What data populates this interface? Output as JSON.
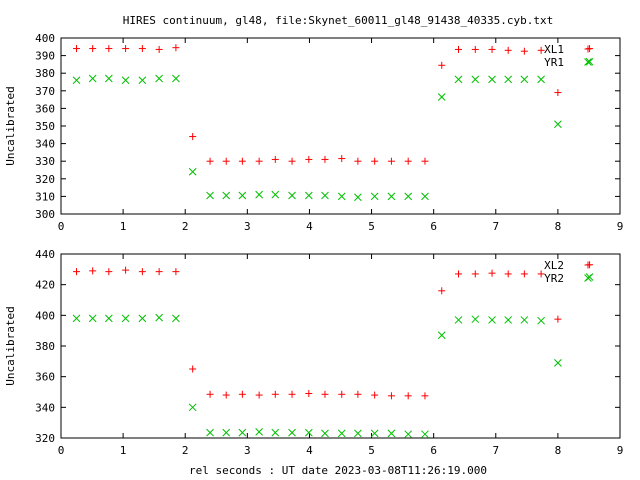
{
  "chart_data": {
    "title": "HIRES continuum, gl48, file:Skynet_60011_gl48_91438_40335.cyb.txt",
    "xlabel": "rel seconds : UT date 2023-03-08T11:26:19.000",
    "panels": [
      {
        "type": "scatter",
        "ylabel": "Uncalibrated",
        "xlim": [
          0,
          9
        ],
        "ylim": [
          300,
          400
        ],
        "xticks": [
          0,
          1,
          2,
          3,
          4,
          5,
          6,
          7,
          8,
          9
        ],
        "yticks": [
          300,
          310,
          320,
          330,
          340,
          350,
          360,
          370,
          380,
          390,
          400
        ],
        "legend_position": "top-right",
        "series": [
          {
            "name": "XL1",
            "marker": "plus",
            "color": "#ff0000",
            "x": [
              0.25,
              0.51,
              0.77,
              1.04,
              1.31,
              1.58,
              1.85,
              2.12,
              2.4,
              2.66,
              2.92,
              3.19,
              3.45,
              3.72,
              3.99,
              4.25,
              4.52,
              4.78,
              5.05,
              5.32,
              5.59,
              5.86,
              6.13,
              6.4,
              6.67,
              6.94,
              7.2,
              7.46,
              7.73,
              8.0,
              8.51
            ],
            "y": [
              394,
              394,
              394,
              394,
              394,
              393.5,
              394.5,
              344,
              330,
              330,
              330,
              330,
              331,
              330,
              331,
              331,
              331.5,
              330,
              330,
              330,
              330,
              330,
              384.5,
              393.5,
              393.5,
              393.5,
              393,
              392.5,
              393,
              369,
              394
            ]
          },
          {
            "name": "YR1",
            "marker": "x",
            "color": "#00c000",
            "x": [
              0.25,
              0.51,
              0.77,
              1.04,
              1.31,
              1.58,
              1.85,
              2.12,
              2.4,
              2.66,
              2.92,
              3.19,
              3.45,
              3.72,
              3.99,
              4.25,
              4.52,
              4.78,
              5.05,
              5.32,
              5.59,
              5.86,
              6.13,
              6.4,
              6.67,
              6.94,
              7.2,
              7.46,
              7.73,
              8.0,
              8.51
            ],
            "y": [
              376,
              377,
              377,
              376,
              376,
              377,
              377,
              324,
              310.5,
              310.5,
              310.5,
              311,
              311,
              310.5,
              310.5,
              310.5,
              310,
              309.5,
              310,
              310,
              310,
              310,
              366.5,
              376.5,
              376.5,
              376.5,
              376.5,
              376.5,
              376.5,
              351,
              386.5
            ]
          }
        ]
      },
      {
        "type": "scatter",
        "ylabel": "Uncalibrated",
        "xlim": [
          0,
          9
        ],
        "ylim": [
          320,
          440
        ],
        "xticks": [
          0,
          1,
          2,
          3,
          4,
          5,
          6,
          7,
          8,
          9
        ],
        "yticks": [
          320,
          340,
          360,
          380,
          400,
          420,
          440
        ],
        "legend_position": "top-right",
        "series": [
          {
            "name": "XL2",
            "marker": "plus",
            "color": "#ff0000",
            "x": [
              0.25,
              0.51,
              0.77,
              1.04,
              1.31,
              1.58,
              1.85,
              2.12,
              2.4,
              2.66,
              2.92,
              3.19,
              3.45,
              3.72,
              3.99,
              4.25,
              4.52,
              4.78,
              5.05,
              5.32,
              5.59,
              5.86,
              6.13,
              6.4,
              6.67,
              6.94,
              7.2,
              7.46,
              7.73,
              8.0,
              8.51
            ],
            "y": [
              428.5,
              429,
              428.5,
              429.5,
              428.5,
              428.5,
              428.5,
              365,
              348.5,
              348,
              348.5,
              348,
              348.5,
              348.5,
              349,
              348.5,
              348.5,
              348.5,
              348,
              347.5,
              347.5,
              347.5,
              416,
              427,
              427,
              427.5,
              427,
              427,
              427,
              397.5,
              433
            ]
          },
          {
            "name": "YR2",
            "marker": "x",
            "color": "#00c000",
            "x": [
              0.25,
              0.51,
              0.77,
              1.04,
              1.31,
              1.58,
              1.85,
              2.12,
              2.4,
              2.66,
              2.92,
              3.19,
              3.45,
              3.72,
              3.99,
              4.25,
              4.52,
              4.78,
              5.05,
              5.32,
              5.59,
              5.86,
              6.13,
              6.4,
              6.67,
              6.94,
              7.2,
              7.46,
              7.73,
              8.0,
              8.51
            ],
            "y": [
              398,
              398,
              398,
              398,
              398,
              398.5,
              398,
              340,
              323.5,
              323.5,
              323.5,
              324,
              323.5,
              323.5,
              323.5,
              323,
              323,
              323,
              323,
              323,
              322.5,
              322.5,
              387,
              397,
              397.5,
              397,
              397,
              397,
              396.5,
              369,
              425
            ]
          }
        ]
      }
    ]
  }
}
